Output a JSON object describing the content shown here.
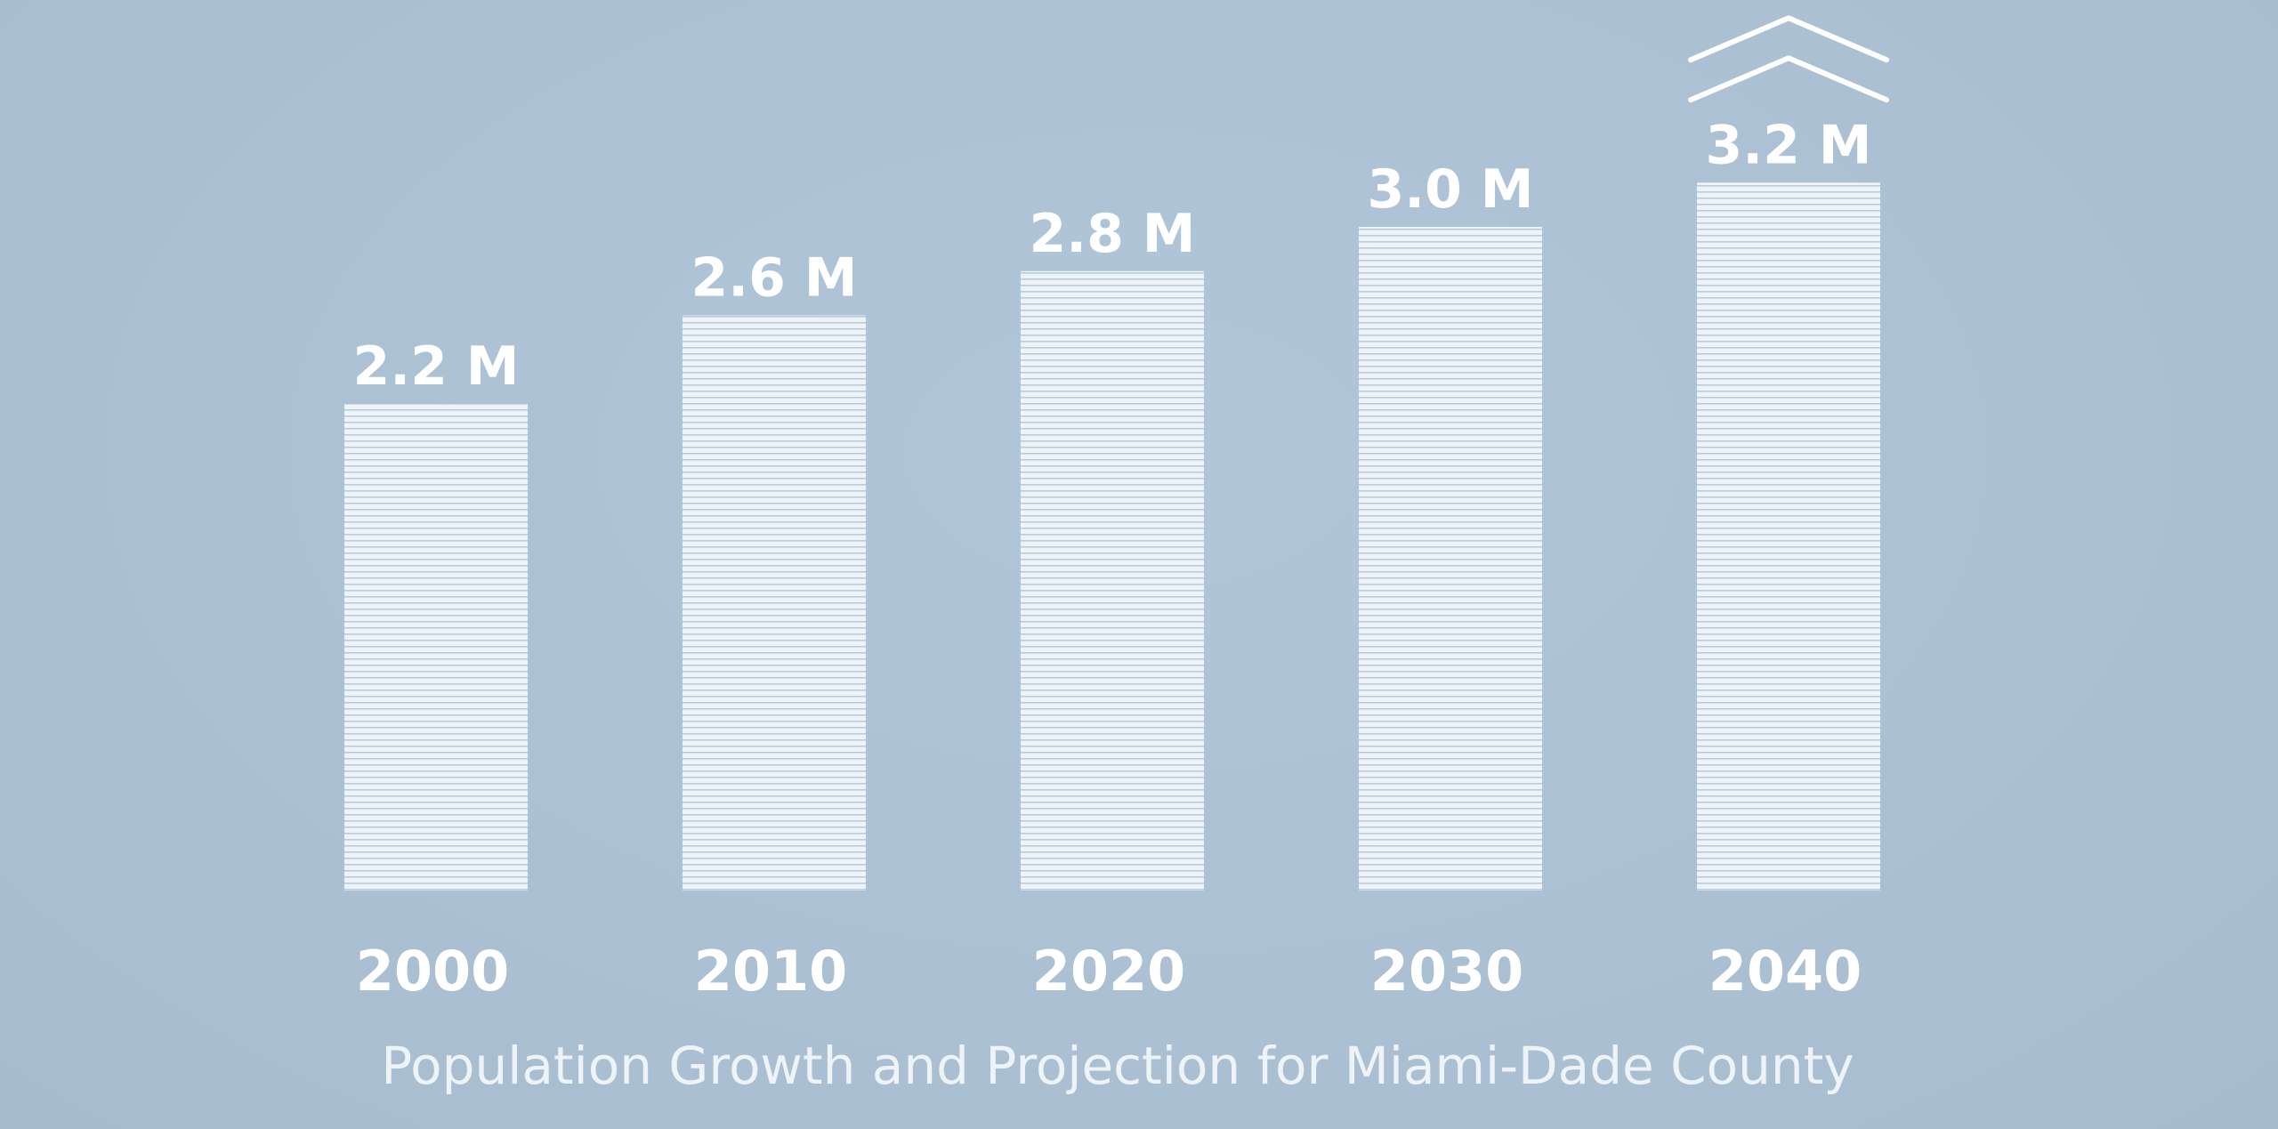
{
  "colors": {
    "background": "#adc2d5",
    "bar_fill": "#eef3f7",
    "bar_stripe": "#adc2d5",
    "text": "#ffffff"
  },
  "chart_data": {
    "type": "bar",
    "title": "Population Growth and Projection for Miami-Dade County",
    "categories": [
      "2000",
      "2010",
      "2020",
      "2030",
      "2040"
    ],
    "values": [
      2.2,
      2.6,
      2.8,
      3.0,
      3.2
    ],
    "data_labels": [
      "2.2 M",
      "2.6 M",
      "2.8 M",
      "3.0 M",
      "3.2 M"
    ],
    "xlabel": "",
    "ylabel": "",
    "ylim": [
      0,
      3.35
    ],
    "grid": false,
    "legend": "none",
    "annotations": [
      {
        "category": "2040",
        "icon": "double-chevron-up-icon"
      }
    ]
  }
}
